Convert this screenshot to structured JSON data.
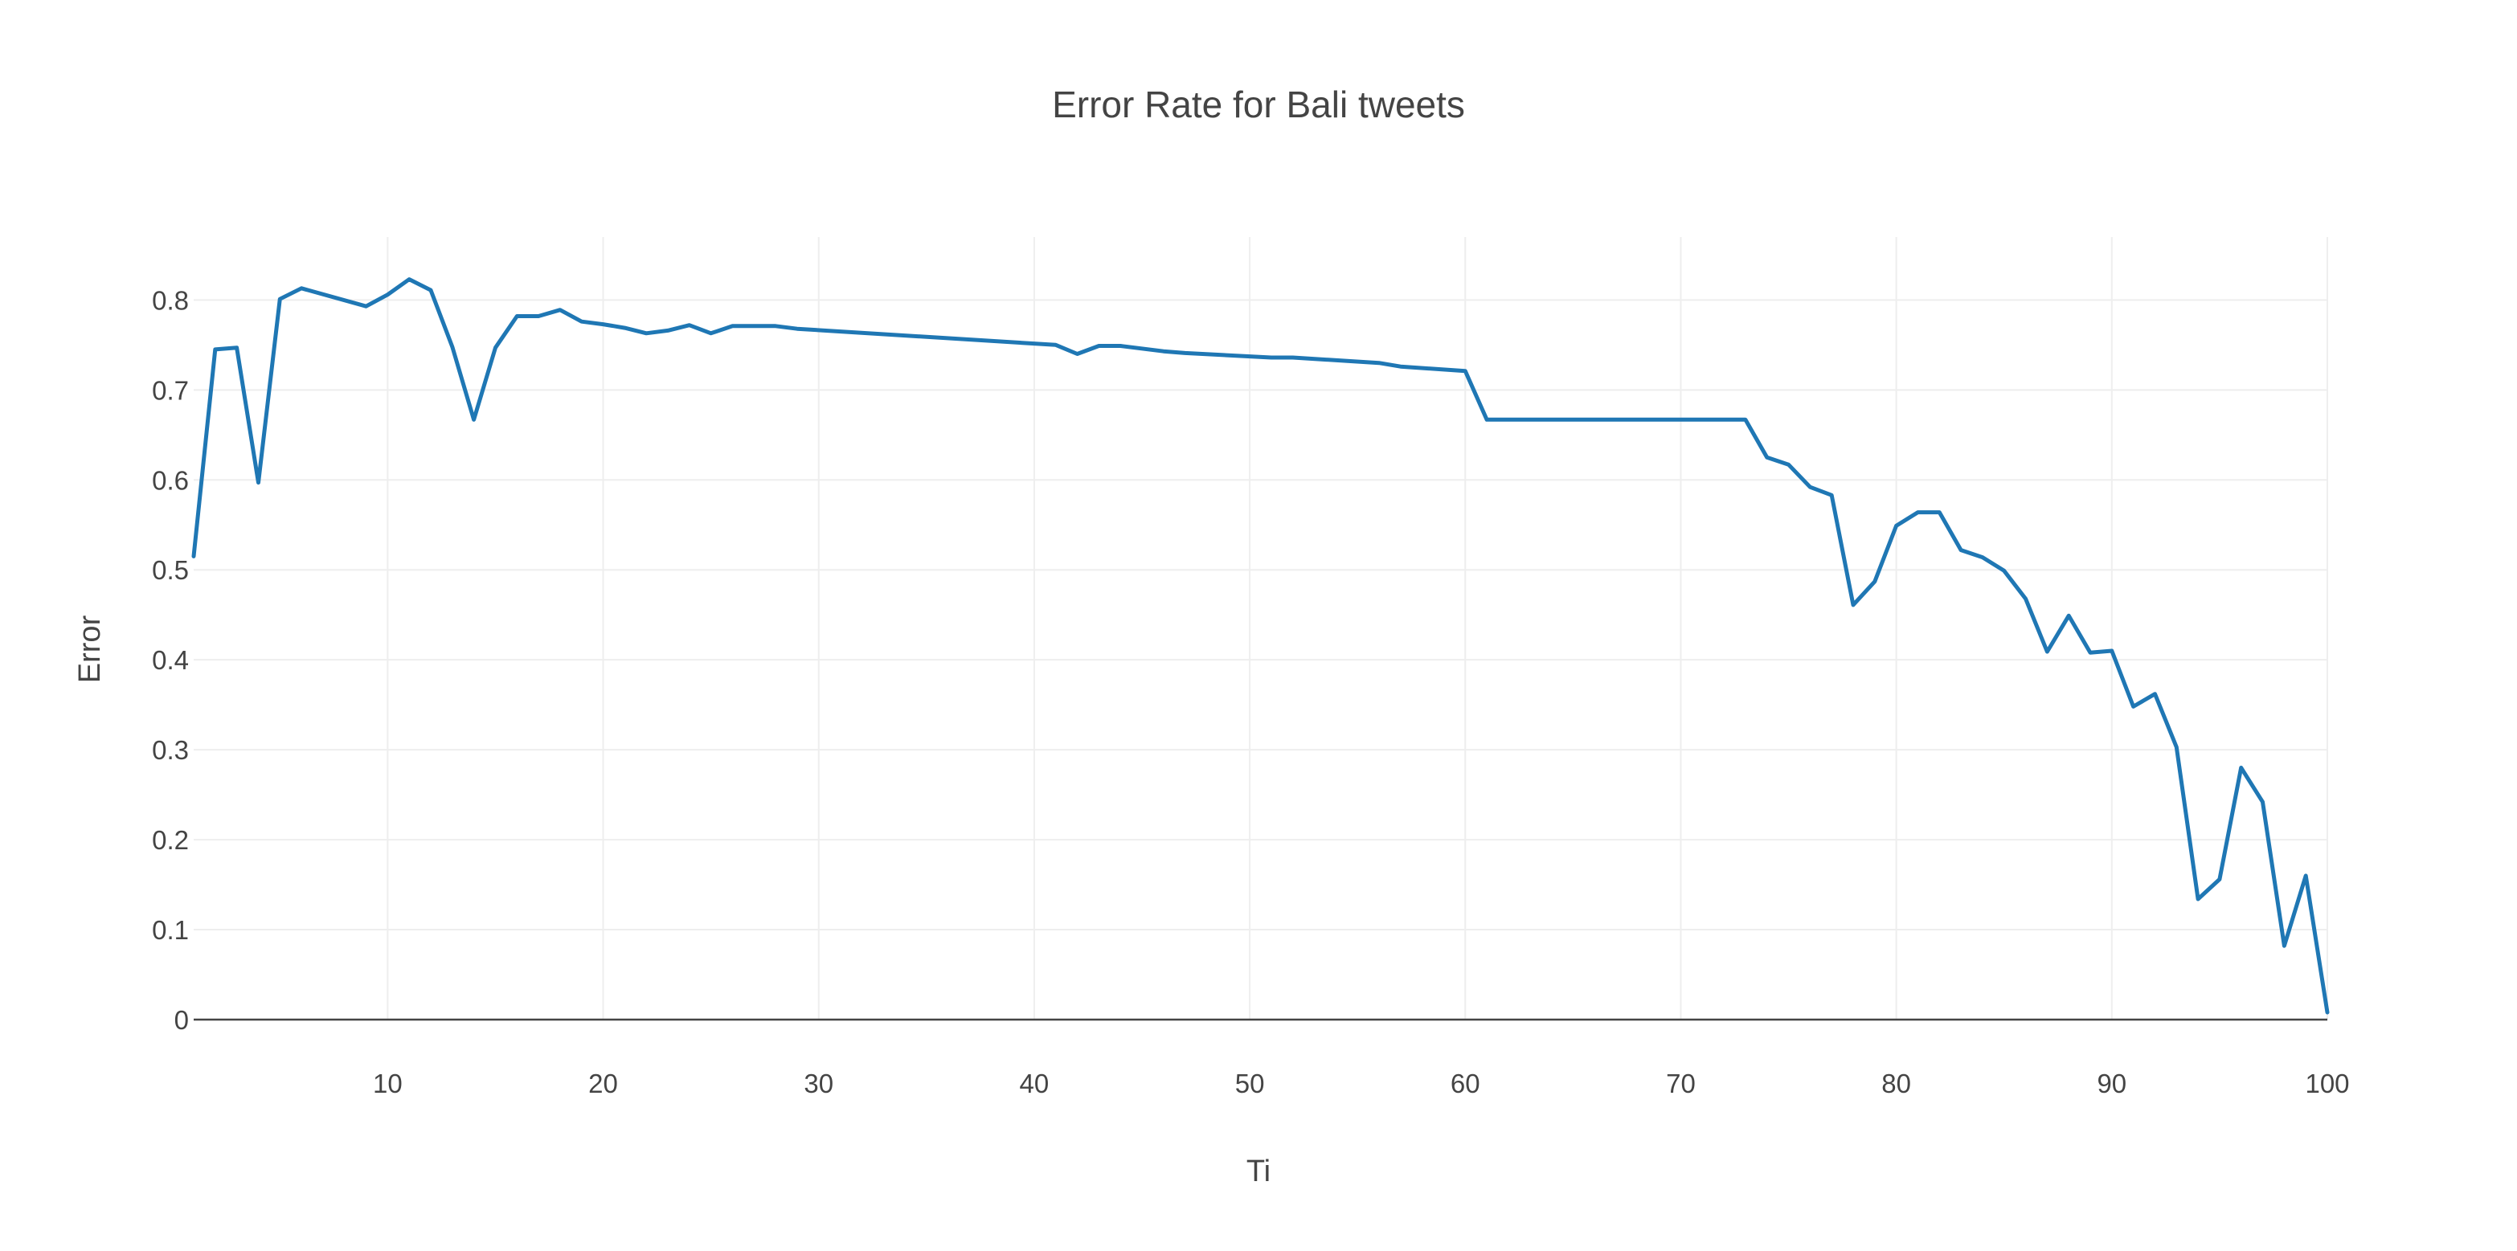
{
  "chart_data": {
    "type": "line",
    "title": "Error Rate for Bali tweets",
    "xlabel": "Ti",
    "ylabel": "Error",
    "xlim": [
      1,
      100
    ],
    "ylim": [
      0,
      0.87
    ],
    "xticks": [
      10,
      20,
      30,
      40,
      50,
      60,
      70,
      80,
      90,
      100
    ],
    "yticks": [
      0,
      0.1,
      0.2,
      0.3,
      0.4,
      0.5,
      0.6,
      0.7,
      0.8
    ],
    "grid": true,
    "line_color": "#1f77b4",
    "series": [
      {
        "x": [
          1,
          2,
          3,
          4,
          5,
          6,
          9,
          10,
          11,
          12,
          13,
          14,
          15,
          16,
          17,
          18,
          19,
          20,
          21,
          22,
          23,
          24,
          25,
          26,
          27,
          28,
          29,
          41,
          42,
          43,
          44,
          46,
          47,
          51,
          52,
          56,
          57,
          60,
          61,
          73,
          74,
          75,
          76,
          77,
          78,
          79,
          80,
          81,
          82,
          83,
          84,
          85,
          86,
          87,
          88,
          89,
          90,
          91,
          92,
          93,
          94,
          95,
          96,
          97,
          98,
          99,
          100
        ],
        "values": [
          0.515,
          0.745,
          0.747,
          0.597,
          0.801,
          0.813,
          0.793,
          0.806,
          0.823,
          0.811,
          0.748,
          0.667,
          0.747,
          0.782,
          0.782,
          0.789,
          0.776,
          0.773,
          0.769,
          0.763,
          0.766,
          0.772,
          0.763,
          0.771,
          0.771,
          0.771,
          0.768,
          0.75,
          0.74,
          0.749,
          0.749,
          0.743,
          0.741,
          0.736,
          0.736,
          0.73,
          0.726,
          0.721,
          0.667,
          0.667,
          0.625,
          0.617,
          0.592,
          0.583,
          0.461,
          0.487,
          0.549,
          0.564,
          0.564,
          0.522,
          0.514,
          0.499,
          0.468,
          0.409,
          0.449,
          0.408,
          0.41,
          0.348,
          0.362,
          0.303,
          0.134,
          0.156,
          0.28,
          0.242,
          0.082,
          0.16,
          0.008
        ]
      }
    ]
  }
}
